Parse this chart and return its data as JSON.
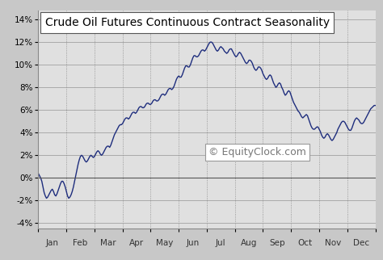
{
  "title": "Crude Oil Futures Continuous Contract Seasonality",
  "background_color": "#c8c8c8",
  "plot_bg_color": "#e0e0e0",
  "line_color": "#1e2d7d",
  "line_width": 1.0,
  "yticks": [
    -4,
    -2,
    0,
    2,
    4,
    6,
    8,
    10,
    12,
    14
  ],
  "ylim": [
    -4.5,
    14.8
  ],
  "xlim": [
    0,
    12
  ],
  "months": [
    "Jan",
    "Feb",
    "Mar",
    "Apr",
    "May",
    "Jun",
    "Jul",
    "Aug",
    "Sep",
    "Oct",
    "Nov",
    "Dec"
  ],
  "watermark": "© EquityClock.com",
  "title_fontsize": 10,
  "tick_fontsize": 7.5,
  "watermark_fontsize": 9,
  "seasonality_data": [
    0.4,
    0.2,
    0.0,
    -0.3,
    -0.8,
    -1.3,
    -1.6,
    -1.8,
    -1.7,
    -1.5,
    -1.3,
    -1.1,
    -1.0,
    -1.2,
    -1.5,
    -1.6,
    -1.4,
    -1.1,
    -0.8,
    -0.5,
    -0.3,
    -0.3,
    -0.5,
    -0.8,
    -1.2,
    -1.6,
    -1.8,
    -1.7,
    -1.5,
    -1.2,
    -0.8,
    -0.3,
    0.2,
    0.7,
    1.2,
    1.6,
    1.9,
    2.0,
    1.9,
    1.7,
    1.5,
    1.4,
    1.5,
    1.7,
    1.9,
    2.0,
    1.9,
    1.8,
    1.9,
    2.1,
    2.3,
    2.4,
    2.3,
    2.1,
    2.0,
    2.1,
    2.3,
    2.5,
    2.7,
    2.8,
    2.8,
    2.7,
    2.9,
    3.2,
    3.5,
    3.8,
    4.0,
    4.2,
    4.4,
    4.6,
    4.7,
    4.7,
    4.8,
    5.0,
    5.2,
    5.3,
    5.3,
    5.2,
    5.3,
    5.5,
    5.7,
    5.8,
    5.8,
    5.7,
    5.8,
    6.0,
    6.2,
    6.3,
    6.3,
    6.2,
    6.2,
    6.3,
    6.5,
    6.6,
    6.6,
    6.5,
    6.5,
    6.6,
    6.8,
    6.9,
    6.9,
    6.8,
    6.8,
    6.9,
    7.1,
    7.3,
    7.4,
    7.4,
    7.3,
    7.4,
    7.6,
    7.8,
    7.9,
    7.9,
    7.8,
    7.9,
    8.1,
    8.4,
    8.7,
    8.9,
    9.0,
    8.9,
    8.9,
    9.1,
    9.4,
    9.7,
    9.9,
    9.9,
    9.8,
    9.8,
    10.0,
    10.3,
    10.6,
    10.8,
    10.8,
    10.7,
    10.7,
    10.8,
    11.0,
    11.2,
    11.3,
    11.3,
    11.2,
    11.3,
    11.5,
    11.7,
    11.9,
    12.0,
    12.0,
    11.9,
    11.7,
    11.5,
    11.3,
    11.2,
    11.3,
    11.5,
    11.6,
    11.5,
    11.4,
    11.2,
    11.1,
    11.0,
    11.1,
    11.3,
    11.4,
    11.4,
    11.2,
    11.0,
    10.8,
    10.7,
    10.8,
    11.0,
    11.1,
    11.0,
    10.8,
    10.6,
    10.4,
    10.2,
    10.1,
    10.2,
    10.4,
    10.4,
    10.3,
    10.1,
    9.8,
    9.6,
    9.5,
    9.6,
    9.8,
    9.8,
    9.7,
    9.5,
    9.2,
    9.0,
    8.8,
    8.7,
    8.8,
    9.0,
    9.1,
    9.0,
    8.7,
    8.4,
    8.2,
    8.0,
    8.1,
    8.3,
    8.4,
    8.3,
    8.0,
    7.8,
    7.5,
    7.3,
    7.4,
    7.6,
    7.7,
    7.6,
    7.3,
    7.0,
    6.7,
    6.5,
    6.3,
    6.1,
    5.9,
    5.8,
    5.6,
    5.4,
    5.3,
    5.4,
    5.5,
    5.6,
    5.5,
    5.2,
    4.9,
    4.6,
    4.4,
    4.3,
    4.3,
    4.4,
    4.5,
    4.5,
    4.3,
    4.1,
    3.8,
    3.6,
    3.5,
    3.6,
    3.8,
    3.9,
    3.8,
    3.6,
    3.4,
    3.3,
    3.4,
    3.6,
    3.8,
    4.0,
    4.3,
    4.5,
    4.7,
    4.9,
    5.0,
    5.0,
    4.9,
    4.7,
    4.5,
    4.3,
    4.2,
    4.2,
    4.4,
    4.7,
    5.0,
    5.2,
    5.3,
    5.2,
    5.1,
    4.9,
    4.8,
    4.8,
    4.9,
    5.1,
    5.3,
    5.5,
    5.7,
    5.9,
    6.1,
    6.2,
    6.3,
    6.4,
    6.4
  ]
}
